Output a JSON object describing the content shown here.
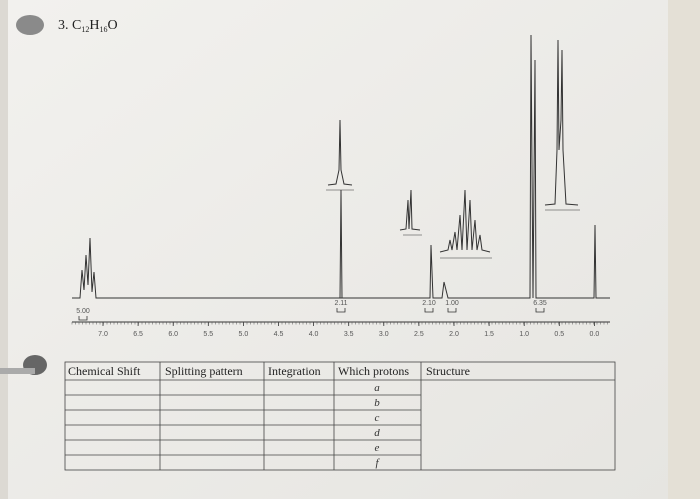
{
  "header": {
    "title_parts": [
      "3. C",
      "12",
      "H",
      "16",
      "O"
    ]
  },
  "spectrum": {
    "axis_ticks": [
      "7.0",
      "6.5",
      "6.0",
      "5.5",
      "5.0",
      "4.5",
      "4.0",
      "3.5",
      "3.0",
      "2.5",
      "2.0",
      "1.5",
      "1.0",
      "0.5",
      "0.0"
    ],
    "integrations": [
      "5.00",
      "2.11",
      "2.10",
      "1.00",
      "6.35"
    ]
  },
  "table": {
    "headers": [
      "Chemical Shift",
      "Splitting pattern",
      "Integration",
      "Which protons",
      "Structure"
    ],
    "protons": [
      "a",
      "b",
      "c",
      "d",
      "e",
      "f"
    ]
  }
}
